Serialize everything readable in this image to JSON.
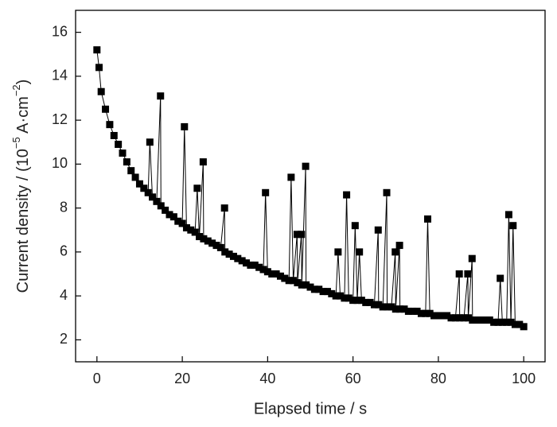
{
  "chart_data": {
    "type": "line",
    "x_label": "Elapsed time / s",
    "y_label_parts": [
      "Current density / (10",
      "−5",
      " A·cm",
      "−2",
      ")"
    ],
    "x": [
      0,
      0.5,
      1,
      2,
      3,
      4,
      5,
      6,
      7,
      8,
      9,
      10,
      11,
      12,
      12.4,
      13,
      14,
      14.9,
      15,
      16,
      17,
      18,
      19,
      20,
      20.5,
      21,
      22,
      23,
      23.5,
      24,
      24.9,
      25,
      26,
      27,
      28,
      29,
      29.9,
      30,
      31,
      32,
      33,
      34,
      35,
      36,
      37,
      38,
      39,
      39.5,
      40,
      41,
      42,
      43,
      44,
      45,
      45.5,
      46,
      46.9,
      47,
      47.9,
      48,
      48.9,
      49,
      50,
      51,
      52,
      53,
      54,
      55,
      56,
      56.5,
      57,
      58,
      58.5,
      59,
      60,
      60.5,
      61,
      61.5,
      62,
      63,
      64,
      65,
      65.9,
      66,
      67,
      67.9,
      68,
      69,
      69.9,
      70,
      70.9,
      71,
      72,
      73,
      74,
      75,
      76,
      77,
      77.5,
      78,
      79,
      80,
      81,
      82,
      83,
      84,
      84.9,
      85,
      86,
      86.9,
      87,
      87.9,
      88,
      89,
      90,
      91,
      92,
      93,
      94,
      94.5,
      95,
      96,
      96.5,
      97,
      97.5,
      98,
      99,
      100
    ],
    "values": [
      15.2,
      14.4,
      13.3,
      12.5,
      11.8,
      11.3,
      10.9,
      10.5,
      10.1,
      9.7,
      9.4,
      9.1,
      8.9,
      8.7,
      11.0,
      8.5,
      8.3,
      13.1,
      8.1,
      7.9,
      7.7,
      7.6,
      7.4,
      7.3,
      11.7,
      7.1,
      7.0,
      6.9,
      8.9,
      6.7,
      10.1,
      6.6,
      6.5,
      6.4,
      6.3,
      6.2,
      8.0,
      6.0,
      5.9,
      5.8,
      5.7,
      5.6,
      5.5,
      5.4,
      5.4,
      5.3,
      5.2,
      8.7,
      5.1,
      5.0,
      5.0,
      4.9,
      4.8,
      4.7,
      9.4,
      4.7,
      6.8,
      4.6,
      6.8,
      4.5,
      9.9,
      4.5,
      4.4,
      4.3,
      4.3,
      4.2,
      4.2,
      4.1,
      4.0,
      6.0,
      4.0,
      3.9,
      8.6,
      3.9,
      3.8,
      7.2,
      3.8,
      6.0,
      3.8,
      3.7,
      3.7,
      3.6,
      7.0,
      3.6,
      3.5,
      8.7,
      3.5,
      3.5,
      6.0,
      3.4,
      6.3,
      3.4,
      3.4,
      3.3,
      3.3,
      3.3,
      3.2,
      3.2,
      7.5,
      3.2,
      3.1,
      3.1,
      3.1,
      3.1,
      3.0,
      3.0,
      5.0,
      3.0,
      3.0,
      5.0,
      3.0,
      5.7,
      2.9,
      2.9,
      2.9,
      2.9,
      2.9,
      2.8,
      2.8,
      4.8,
      2.8,
      2.8,
      7.7,
      2.8,
      7.2,
      2.7,
      2.7,
      2.6
    ],
    "color": "#000000",
    "xlim": [
      -5,
      105
    ],
    "ylim": [
      1,
      17
    ],
    "xticks": [
      0,
      20,
      40,
      60,
      80,
      100
    ],
    "yticks": [
      2,
      4,
      6,
      8,
      10,
      12,
      14,
      16
    ]
  }
}
